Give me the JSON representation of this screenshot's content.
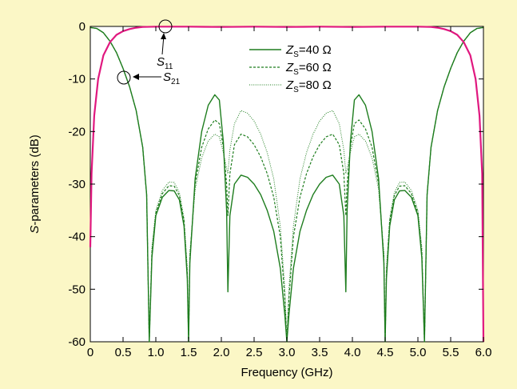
{
  "chart_data": {
    "type": "line",
    "xlabel": "Frequency (GHz)",
    "ylabel": {
      "italic": "S",
      "rest": "-parameters (dB)"
    },
    "xlim": [
      0,
      6
    ],
    "ylim": [
      -60,
      0
    ],
    "xticks": [
      0,
      0.5,
      1,
      1.5,
      2,
      2.5,
      3,
      3.5,
      4,
      4.5,
      5,
      5.5,
      6
    ],
    "xtick_labels": [
      "0",
      "0.5",
      "1.0",
      "1.5",
      "2.0",
      "2.5",
      "3.0",
      "3.5",
      "4.0",
      "4.5",
      "5.0",
      "5.5",
      "6.0"
    ],
    "yticks": [
      0,
      -10,
      -20,
      -30,
      -40,
      -50,
      -60
    ],
    "ytick_labels": [
      "0",
      "-10",
      "-20",
      "-30",
      "-40",
      "-50",
      "-60"
    ],
    "grid": false,
    "legend": [
      {
        "italic": "Z",
        "sub": "S",
        "rest": "=40 Ω",
        "dash": "solid"
      },
      {
        "italic": "Z",
        "sub": "S",
        "rest": "=60 Ω",
        "dash": "dashed"
      },
      {
        "italic": "Z",
        "sub": "S",
        "rest": "=80 Ω",
        "dash": "dotted"
      }
    ],
    "annotations": [
      {
        "italic": "S",
        "sub": "11"
      },
      {
        "italic": "S",
        "sub": "21"
      }
    ],
    "colors": {
      "s21": "#1e7d1e",
      "s11": "#e0187f",
      "background": "#fbf7c6"
    },
    "series": [
      {
        "name": "S11",
        "values": [
          [
            0,
            -42
          ],
          [
            0.02,
            -28
          ],
          [
            0.06,
            -17
          ],
          [
            0.12,
            -10
          ],
          [
            0.2,
            -5.5
          ],
          [
            0.3,
            -3
          ],
          [
            0.4,
            -1.6
          ],
          [
            0.5,
            -0.9
          ],
          [
            0.6,
            -0.5
          ],
          [
            0.7,
            -0.25
          ],
          [
            0.8,
            -0.1
          ],
          [
            1.0,
            -0.05
          ],
          [
            1.5,
            -0.05
          ],
          [
            2.0,
            -0.1
          ],
          [
            2.5,
            -0.05
          ],
          [
            3.0,
            -0.1
          ],
          [
            3.5,
            -0.05
          ],
          [
            4.0,
            -0.1
          ],
          [
            4.5,
            -0.05
          ],
          [
            5.0,
            -0.05
          ],
          [
            5.2,
            -0.1
          ],
          [
            5.3,
            -0.25
          ],
          [
            5.4,
            -0.5
          ],
          [
            5.5,
            -0.9
          ],
          [
            5.6,
            -1.6
          ],
          [
            5.7,
            -3
          ],
          [
            5.8,
            -5.5
          ],
          [
            5.88,
            -10
          ],
          [
            5.94,
            -17
          ],
          [
            5.98,
            -28
          ],
          [
            6.0,
            -60
          ]
        ]
      },
      {
        "name": "Z_S=40 Ω",
        "values": [
          [
            0,
            -0.2
          ],
          [
            0.1,
            -0.4
          ],
          [
            0.2,
            -1.2
          ],
          [
            0.3,
            -2.8
          ],
          [
            0.4,
            -5
          ],
          [
            0.5,
            -8
          ],
          [
            0.6,
            -11.5
          ],
          [
            0.7,
            -16
          ],
          [
            0.8,
            -23
          ],
          [
            0.86,
            -32
          ],
          [
            0.9,
            -60
          ],
          [
            0.94,
            -44
          ],
          [
            1.0,
            -36
          ],
          [
            1.1,
            -32.5
          ],
          [
            1.2,
            -31.2
          ],
          [
            1.28,
            -31.3
          ],
          [
            1.36,
            -33
          ],
          [
            1.43,
            -38
          ],
          [
            1.48,
            -48
          ],
          [
            1.5,
            -60
          ],
          [
            1.52,
            -45
          ],
          [
            1.6,
            -29
          ],
          [
            1.7,
            -20
          ],
          [
            1.8,
            -15
          ],
          [
            1.9,
            -13
          ],
          [
            1.97,
            -14
          ],
          [
            2.03,
            -22
          ],
          [
            2.08,
            -35
          ],
          [
            2.1,
            -50.5
          ],
          [
            2.13,
            -36
          ],
          [
            2.2,
            -30
          ],
          [
            2.3,
            -28.3
          ],
          [
            2.4,
            -28.7
          ],
          [
            2.5,
            -30
          ],
          [
            2.6,
            -32
          ],
          [
            2.7,
            -35
          ],
          [
            2.8,
            -39
          ],
          [
            2.9,
            -46
          ],
          [
            2.97,
            -55
          ],
          [
            3.0,
            -60
          ],
          [
            3.03,
            -55
          ],
          [
            3.1,
            -46
          ],
          [
            3.2,
            -39
          ],
          [
            3.3,
            -35
          ],
          [
            3.4,
            -32
          ],
          [
            3.5,
            -30
          ],
          [
            3.6,
            -28.7
          ],
          [
            3.7,
            -28.3
          ],
          [
            3.8,
            -30
          ],
          [
            3.87,
            -36
          ],
          [
            3.9,
            -50.5
          ],
          [
            3.92,
            -35
          ],
          [
            3.97,
            -22
          ],
          [
            4.03,
            -14
          ],
          [
            4.1,
            -13
          ],
          [
            4.2,
            -15
          ],
          [
            4.3,
            -20
          ],
          [
            4.4,
            -29
          ],
          [
            4.48,
            -45
          ],
          [
            4.5,
            -60
          ],
          [
            4.52,
            -48
          ],
          [
            4.57,
            -38
          ],
          [
            4.64,
            -33
          ],
          [
            4.72,
            -31.3
          ],
          [
            4.8,
            -31.2
          ],
          [
            4.9,
            -32.5
          ],
          [
            5.0,
            -36
          ],
          [
            5.06,
            -44
          ],
          [
            5.1,
            -60
          ],
          [
            5.14,
            -32
          ],
          [
            5.2,
            -23
          ],
          [
            5.3,
            -16
          ],
          [
            5.4,
            -11.5
          ],
          [
            5.5,
            -8
          ],
          [
            5.6,
            -5
          ],
          [
            5.7,
            -2.8
          ],
          [
            5.8,
            -1.2
          ],
          [
            5.9,
            -0.4
          ],
          [
            6.0,
            -0.2
          ]
        ]
      },
      {
        "name": "Z_S=60 Ω",
        "values": [
          [
            0,
            -0.2
          ],
          [
            0.1,
            -0.4
          ],
          [
            0.2,
            -1.2
          ],
          [
            0.3,
            -2.8
          ],
          [
            0.4,
            -5
          ],
          [
            0.5,
            -8
          ],
          [
            0.6,
            -11.5
          ],
          [
            0.7,
            -16
          ],
          [
            0.8,
            -23
          ],
          [
            0.86,
            -32
          ],
          [
            0.9,
            -60
          ],
          [
            0.94,
            -43
          ],
          [
            1.0,
            -35.5
          ],
          [
            1.1,
            -31.8
          ],
          [
            1.2,
            -30.3
          ],
          [
            1.28,
            -30.4
          ],
          [
            1.36,
            -32.2
          ],
          [
            1.43,
            -37
          ],
          [
            1.48,
            -47
          ],
          [
            1.5,
            -60
          ],
          [
            1.52,
            -44
          ],
          [
            1.6,
            -30
          ],
          [
            1.7,
            -23
          ],
          [
            1.8,
            -19.5
          ],
          [
            1.9,
            -17.8
          ],
          [
            1.97,
            -18.5
          ],
          [
            2.03,
            -23
          ],
          [
            2.08,
            -30
          ],
          [
            2.1,
            -36
          ],
          [
            2.13,
            -28
          ],
          [
            2.2,
            -22.5
          ],
          [
            2.3,
            -20.5
          ],
          [
            2.4,
            -21
          ],
          [
            2.5,
            -22.5
          ],
          [
            2.6,
            -24.8
          ],
          [
            2.7,
            -28
          ],
          [
            2.8,
            -32.5
          ],
          [
            2.9,
            -40
          ],
          [
            2.97,
            -52
          ],
          [
            3.0,
            -60
          ],
          [
            3.03,
            -52
          ],
          [
            3.1,
            -40
          ],
          [
            3.2,
            -32.5
          ],
          [
            3.3,
            -28
          ],
          [
            3.4,
            -24.8
          ],
          [
            3.5,
            -22.5
          ],
          [
            3.6,
            -21
          ],
          [
            3.7,
            -20.5
          ],
          [
            3.8,
            -22.5
          ],
          [
            3.87,
            -28
          ],
          [
            3.9,
            -36
          ],
          [
            3.92,
            -30
          ],
          [
            3.97,
            -23
          ],
          [
            4.03,
            -18.5
          ],
          [
            4.1,
            -17.8
          ],
          [
            4.2,
            -19.5
          ],
          [
            4.3,
            -23
          ],
          [
            4.4,
            -30
          ],
          [
            4.48,
            -44
          ],
          [
            4.5,
            -60
          ],
          [
            4.52,
            -47
          ],
          [
            4.57,
            -37
          ],
          [
            4.64,
            -32.2
          ],
          [
            4.72,
            -30.4
          ],
          [
            4.8,
            -30.3
          ],
          [
            4.9,
            -31.8
          ],
          [
            5.0,
            -35.5
          ],
          [
            5.06,
            -43
          ],
          [
            5.1,
            -60
          ],
          [
            5.14,
            -32
          ],
          [
            5.2,
            -23
          ],
          [
            5.3,
            -16
          ],
          [
            5.4,
            -11.5
          ],
          [
            5.5,
            -8
          ],
          [
            5.6,
            -5
          ],
          [
            5.7,
            -2.8
          ],
          [
            5.8,
            -1.2
          ],
          [
            5.9,
            -0.4
          ],
          [
            6.0,
            -0.2
          ]
        ]
      },
      {
        "name": "Z_S=80 Ω",
        "values": [
          [
            0,
            -0.2
          ],
          [
            0.1,
            -0.4
          ],
          [
            0.2,
            -1.2
          ],
          [
            0.3,
            -2.8
          ],
          [
            0.4,
            -5
          ],
          [
            0.5,
            -8
          ],
          [
            0.6,
            -11.5
          ],
          [
            0.7,
            -16
          ],
          [
            0.8,
            -23
          ],
          [
            0.86,
            -32
          ],
          [
            0.9,
            -60
          ],
          [
            0.94,
            -42
          ],
          [
            1.0,
            -35
          ],
          [
            1.1,
            -31.2
          ],
          [
            1.2,
            -29.6
          ],
          [
            1.28,
            -29.7
          ],
          [
            1.36,
            -31.6
          ],
          [
            1.43,
            -36.5
          ],
          [
            1.48,
            -46
          ],
          [
            1.5,
            -60
          ],
          [
            1.52,
            -43
          ],
          [
            1.6,
            -31
          ],
          [
            1.7,
            -25
          ],
          [
            1.8,
            -21.8
          ],
          [
            1.9,
            -20.5
          ],
          [
            1.97,
            -21
          ],
          [
            2.03,
            -24
          ],
          [
            2.08,
            -27
          ],
          [
            2.1,
            -28
          ],
          [
            2.13,
            -23.5
          ],
          [
            2.2,
            -18.5
          ],
          [
            2.3,
            -16
          ],
          [
            2.4,
            -16.5
          ],
          [
            2.5,
            -18
          ],
          [
            2.6,
            -20.5
          ],
          [
            2.7,
            -24
          ],
          [
            2.8,
            -29
          ],
          [
            2.9,
            -38
          ],
          [
            2.97,
            -50
          ],
          [
            3.0,
            -60
          ],
          [
            3.03,
            -50
          ],
          [
            3.1,
            -38
          ],
          [
            3.2,
            -29
          ],
          [
            3.3,
            -24
          ],
          [
            3.4,
            -20.5
          ],
          [
            3.5,
            -18
          ],
          [
            3.6,
            -16.5
          ],
          [
            3.7,
            -16
          ],
          [
            3.8,
            -18.5
          ],
          [
            3.87,
            -23.5
          ],
          [
            3.9,
            -28
          ],
          [
            3.92,
            -27
          ],
          [
            3.97,
            -24
          ],
          [
            4.03,
            -21
          ],
          [
            4.1,
            -20.5
          ],
          [
            4.2,
            -21.8
          ],
          [
            4.3,
            -25
          ],
          [
            4.4,
            -31
          ],
          [
            4.48,
            -43
          ],
          [
            4.5,
            -60
          ],
          [
            4.52,
            -46
          ],
          [
            4.57,
            -36.5
          ],
          [
            4.64,
            -31.6
          ],
          [
            4.72,
            -29.7
          ],
          [
            4.8,
            -29.6
          ],
          [
            4.9,
            -31.2
          ],
          [
            5.0,
            -35
          ],
          [
            5.06,
            -42
          ],
          [
            5.1,
            -60
          ],
          [
            5.14,
            -32
          ],
          [
            5.2,
            -23
          ],
          [
            5.3,
            -16
          ],
          [
            5.4,
            -11.5
          ],
          [
            5.5,
            -8
          ],
          [
            5.6,
            -5
          ],
          [
            5.7,
            -2.8
          ],
          [
            5.8,
            -1.2
          ],
          [
            5.9,
            -0.4
          ],
          [
            6.0,
            -0.2
          ]
        ]
      }
    ]
  }
}
